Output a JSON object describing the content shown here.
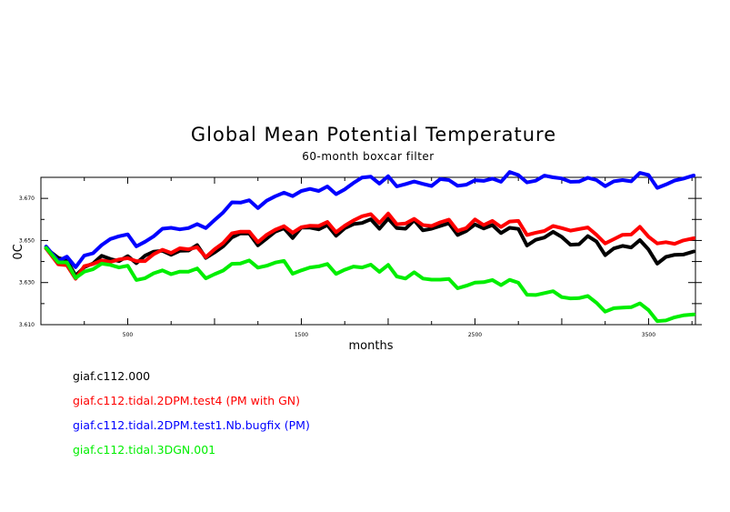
{
  "chart_data": {
    "type": "line",
    "title": "Global Mean Potential Temperature",
    "subtitle": "60-month boxcar filter",
    "xlabel": "months",
    "ylabel": "0C",
    "xlim": [
      0,
      3770
    ],
    "ylim": [
      3.61,
      3.68
    ],
    "xticks": [
      500,
      1500,
      2500,
      3500
    ],
    "xtick_labels": [
      "500",
      "1500",
      "2500",
      "3500"
    ],
    "yticks": [
      3.61,
      3.63,
      3.65,
      3.67
    ],
    "ytick_labels": [
      "3.610",
      "3.630",
      "3.650",
      "3.670"
    ],
    "x": [
      30,
      100,
      150,
      200,
      250,
      300,
      350,
      400,
      450,
      500,
      550,
      600,
      650,
      700,
      750,
      800,
      850,
      900,
      950,
      1000,
      1050,
      1100,
      1150,
      1200,
      1250,
      1300,
      1350,
      1400,
      1450,
      1500,
      1550,
      1600,
      1650,
      1700,
      1750,
      1800,
      1850,
      1900,
      1950,
      2000,
      2050,
      2100,
      2150,
      2200,
      2250,
      2300,
      2350,
      2400,
      2450,
      2500,
      2550,
      2600,
      2650,
      2700,
      2750,
      2800,
      2850,
      2900,
      2950,
      3000,
      3050,
      3100,
      3150,
      3200,
      3250,
      3300,
      3350,
      3400,
      3450,
      3500,
      3550,
      3600,
      3650,
      3700,
      3760
    ],
    "series": [
      {
        "name": "giaf.c112.000",
        "color": "#000000",
        "values": [
          3.6462,
          3.6417,
          3.6405,
          3.6333,
          3.6373,
          3.6391,
          3.6427,
          3.6412,
          3.6402,
          3.6426,
          3.6392,
          3.6428,
          3.6447,
          3.6451,
          3.6432,
          3.6451,
          3.6452,
          3.6478,
          3.6417,
          3.6443,
          3.6472,
          3.6515,
          3.6534,
          3.6533,
          3.6477,
          3.6509,
          3.6542,
          3.6558,
          3.6512,
          3.6562,
          3.6561,
          3.6553,
          3.6573,
          3.6522,
          3.6558,
          3.6578,
          3.6583,
          3.6601,
          3.6556,
          3.6604,
          3.6559,
          3.6556,
          3.6596,
          3.6548,
          3.6556,
          3.6569,
          3.6582,
          3.6526,
          3.6545,
          3.6576,
          3.6557,
          3.6573,
          3.6535,
          3.656,
          3.6555,
          3.6476,
          3.6503,
          3.6514,
          3.6541,
          3.6517,
          3.648,
          3.6482,
          3.6521,
          3.6495,
          3.643,
          3.6462,
          3.6474,
          3.6467,
          3.6502,
          3.6457,
          3.639,
          3.6422,
          3.6432,
          3.6433,
          3.6448
        ]
      },
      {
        "name": "giaf.c112.tidal.2DPM.test4 (PM with GN)",
        "color": "#ff0000",
        "values": [
          3.6462,
          3.6387,
          3.6382,
          3.6318,
          3.6378,
          3.6388,
          3.6405,
          3.6398,
          3.641,
          3.6416,
          3.6402,
          3.6402,
          3.6435,
          3.6456,
          3.6441,
          3.6463,
          3.6458,
          3.6468,
          3.6421,
          3.6458,
          3.6488,
          3.6534,
          3.6542,
          3.6542,
          3.6492,
          3.6527,
          3.6551,
          3.6568,
          3.6537,
          3.6563,
          3.657,
          3.6569,
          3.6588,
          3.6539,
          3.657,
          3.6595,
          3.6615,
          3.6625,
          3.6583,
          3.6628,
          3.6577,
          3.6581,
          3.6603,
          3.6573,
          3.6569,
          3.6586,
          3.6599,
          3.6546,
          3.6559,
          3.66,
          3.6573,
          3.6593,
          3.6564,
          3.659,
          3.6593,
          3.6526,
          3.6537,
          3.6545,
          3.6569,
          3.6559,
          3.6547,
          3.6554,
          3.6562,
          3.6527,
          3.6486,
          3.6506,
          3.6527,
          3.6528,
          3.6565,
          3.6518,
          3.6486,
          3.6492,
          3.6484,
          3.65,
          3.6511
        ]
      },
      {
        "name": "giaf.c112.tidal.2DPM.test1.Nb.bugfix (PM)",
        "color": "#0000ff",
        "values": [
          3.6471,
          3.6403,
          3.6423,
          3.6373,
          3.6428,
          3.6439,
          3.6478,
          3.6507,
          3.652,
          3.6529,
          3.6472,
          3.6494,
          3.652,
          3.6556,
          3.656,
          3.6553,
          3.6559,
          3.6578,
          3.6559,
          3.6597,
          3.6633,
          3.6681,
          3.668,
          3.6691,
          3.6654,
          3.6689,
          3.671,
          3.6727,
          3.6711,
          3.6735,
          3.6745,
          3.6735,
          3.6757,
          3.672,
          3.6743,
          3.6773,
          3.6799,
          3.6803,
          3.677,
          3.6805,
          3.6757,
          3.6768,
          3.678,
          3.6769,
          3.6759,
          3.6792,
          3.6787,
          3.676,
          3.6765,
          3.6786,
          3.6783,
          3.6794,
          3.6779,
          3.6825,
          3.6811,
          3.6776,
          3.6784,
          3.6808,
          3.68,
          3.6795,
          3.6779,
          3.678,
          3.6798,
          3.6787,
          3.6758,
          3.6781,
          3.6787,
          3.6781,
          3.6821,
          3.6811,
          3.675,
          3.6766,
          3.6785,
          3.6794,
          3.6809
        ]
      },
      {
        "name": "giaf.c112.tidal.3DGN.001",
        "color": "#00ee00",
        "values": [
          3.6465,
          3.6396,
          3.6396,
          3.6322,
          3.6352,
          3.6363,
          3.639,
          3.6384,
          3.6372,
          3.638,
          3.6312,
          3.6321,
          3.6344,
          3.6358,
          3.634,
          3.6352,
          3.6352,
          3.6367,
          3.632,
          3.634,
          3.6357,
          3.6389,
          3.6391,
          3.6405,
          3.6371,
          3.638,
          3.6395,
          3.6403,
          3.6342,
          3.6358,
          3.6372,
          3.6377,
          3.6388,
          3.6341,
          3.6361,
          3.6376,
          3.6372,
          3.6385,
          3.6351,
          3.6384,
          3.6329,
          3.6319,
          3.6349,
          3.6319,
          3.6314,
          3.6314,
          3.6317,
          3.6273,
          3.6285,
          3.63,
          3.6302,
          3.6312,
          3.6288,
          3.6313,
          3.6299,
          3.6242,
          3.6241,
          3.625,
          3.6259,
          3.6231,
          3.6225,
          3.6226,
          3.6236,
          3.6204,
          3.6162,
          3.6178,
          3.6181,
          3.6183,
          3.6201,
          3.6169,
          3.6117,
          3.612,
          3.6135,
          3.6144,
          3.6149
        ]
      }
    ]
  }
}
